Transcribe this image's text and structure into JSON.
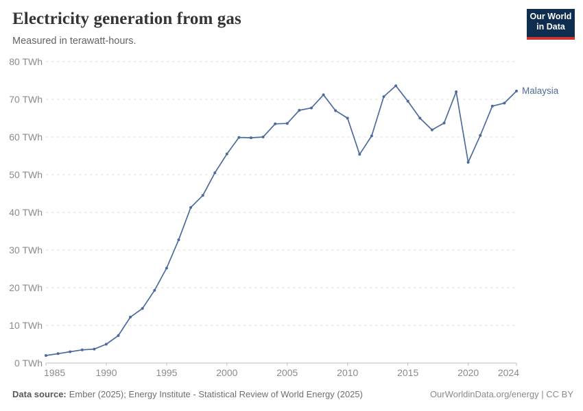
{
  "header": {
    "title": "Electricity generation from gas",
    "subtitle": "Measured in terawatt-hours.",
    "logo": {
      "line1": "Our World",
      "line2": "in Data"
    }
  },
  "footer": {
    "source_label": "Data source:",
    "source_text": "Ember (2025); Energy Institute - Statistical Review of World Energy (2025)",
    "credit": "OurWorldinData.org/energy | CC BY"
  },
  "colors": {
    "series_blue": "#4c6a9c",
    "gridline": "#dcdcdc",
    "axis": "#bdbdbd",
    "logo_navy": "#0f2d4e",
    "logo_red": "#d0342f"
  },
  "chart_data": {
    "type": "line",
    "title": "Electricity generation from gas",
    "subtitle": "Measured in terawatt-hours.",
    "xlabel": "",
    "ylabel": "",
    "xlim": [
      1985,
      2024
    ],
    "ylim": [
      0,
      80
    ],
    "x_ticks": [
      1985,
      1990,
      1995,
      2000,
      2005,
      2010,
      2015,
      2020,
      2024
    ],
    "y_ticks": [
      0,
      10,
      20,
      30,
      40,
      50,
      60,
      70,
      80
    ],
    "y_tick_suffix": " TWh",
    "grid": "horizontal-dashed",
    "legend_position": "end-of-line",
    "series": [
      {
        "name": "Malaysia",
        "color": "#4c6a9c",
        "x": [
          1985,
          1986,
          1987,
          1988,
          1989,
          1990,
          1991,
          1992,
          1993,
          1994,
          1995,
          1996,
          1997,
          1998,
          1999,
          2000,
          2001,
          2002,
          2003,
          2004,
          2005,
          2006,
          2007,
          2008,
          2009,
          2010,
          2011,
          2012,
          2013,
          2014,
          2015,
          2016,
          2017,
          2018,
          2019,
          2020,
          2021,
          2022,
          2023,
          2024
        ],
        "values": [
          2.0,
          2.5,
          3.0,
          3.5,
          3.7,
          5.0,
          7.3,
          12.2,
          14.5,
          19.3,
          25.2,
          32.7,
          41.3,
          44.5,
          50.5,
          55.5,
          59.9,
          59.8,
          60.0,
          63.5,
          63.6,
          67.1,
          67.7,
          71.2,
          67.0,
          65.0,
          55.4,
          60.3,
          70.7,
          73.6,
          69.5,
          65.0,
          61.9,
          63.7,
          72.0,
          53.3,
          60.4,
          68.2,
          69.0,
          72.2
        ]
      }
    ]
  }
}
